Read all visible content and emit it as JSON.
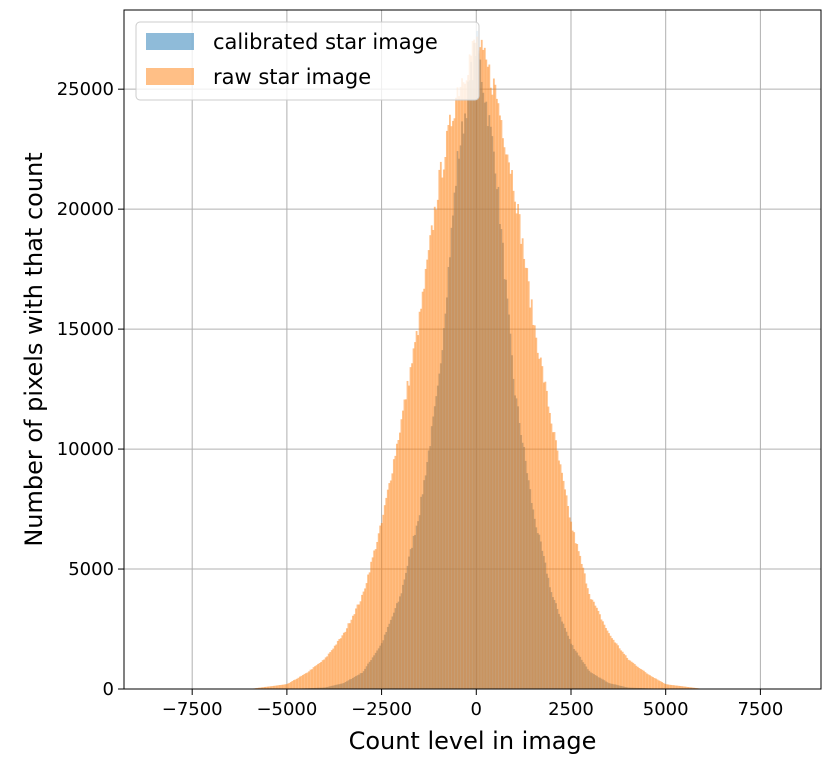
{
  "chart_data": {
    "type": "histogram",
    "xlabel": "Count level in image",
    "ylabel": "Number of pixels with that count",
    "xlim": [
      -9300,
      9100
    ],
    "ylim": [
      0,
      28300
    ],
    "xticks": [
      -7500,
      -5000,
      -2500,
      0,
      2500,
      5000,
      7500
    ],
    "xtick_labels": [
      "−7500",
      "−5000",
      "−2500",
      "0",
      "2500",
      "5000",
      "7500"
    ],
    "yticks": [
      0,
      5000,
      10000,
      15000,
      20000,
      25000
    ],
    "ytick_labels": [
      "0",
      "5000",
      "10000",
      "15000",
      "20000",
      "25000"
    ],
    "grid": true,
    "legend_position": "upper-left",
    "series": [
      {
        "name": "calibrated star image",
        "color": "#1f77b4",
        "alpha": 0.5,
        "distribution": "approximately normal",
        "x_range": [
          -5000,
          5000
        ],
        "peak_x": 0,
        "peak_y": 27000,
        "values": [
          [
            -5000,
            0
          ],
          [
            -4000,
            60
          ],
          [
            -3500,
            250
          ],
          [
            -3000,
            700
          ],
          [
            -2500,
            1900
          ],
          [
            -2000,
            3900
          ],
          [
            -1500,
            7400
          ],
          [
            -1000,
            12600
          ],
          [
            -500,
            22000
          ],
          [
            0,
            27000
          ],
          [
            500,
            22000
          ],
          [
            1000,
            12600
          ],
          [
            1500,
            7400
          ],
          [
            2000,
            3900
          ],
          [
            2500,
            1900
          ],
          [
            3000,
            700
          ],
          [
            3500,
            250
          ],
          [
            4000,
            60
          ],
          [
            5000,
            0
          ]
        ]
      },
      {
        "name": "raw star image",
        "color": "#ff7f0e",
        "alpha": 0.5,
        "distribution": "approximately normal",
        "x_range": [
          -6000,
          6500
        ],
        "peak_x": 0,
        "peak_y": 27000,
        "values": [
          [
            -6000,
            0
          ],
          [
            -5000,
            200
          ],
          [
            -4500,
            650
          ],
          [
            -4000,
            1250
          ],
          [
            -3500,
            2300
          ],
          [
            -3000,
            3900
          ],
          [
            -2500,
            6900
          ],
          [
            -2000,
            11000
          ],
          [
            -1500,
            15400
          ],
          [
            -1000,
            21000
          ],
          [
            -500,
            25000
          ],
          [
            0,
            27000
          ],
          [
            500,
            25000
          ],
          [
            1000,
            21000
          ],
          [
            1500,
            15400
          ],
          [
            2000,
            11000
          ],
          [
            2500,
            6900
          ],
          [
            3000,
            3900
          ],
          [
            3500,
            2300
          ],
          [
            4000,
            1250
          ],
          [
            4500,
            650
          ],
          [
            5000,
            200
          ],
          [
            6000,
            0
          ]
        ]
      }
    ]
  }
}
